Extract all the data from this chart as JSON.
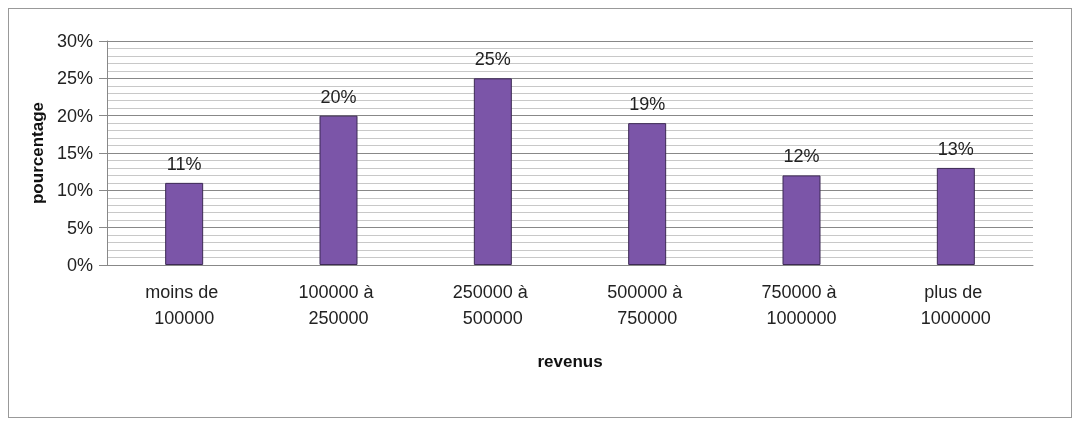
{
  "chart_data": {
    "type": "bar",
    "xlabel": "revenus",
    "ylabel": "pourcentage",
    "categories": [
      "moins de 100000",
      "100000 à 250000",
      "250000 à 500000",
      "500000 à 750000",
      "750000 à 1000000",
      "plus de 1000000"
    ],
    "values": [
      11,
      20,
      25,
      19,
      12,
      13
    ],
    "color": "#7b55a8",
    "value_labels": [
      "11%",
      "20%",
      "25%",
      "19%",
      "12%",
      "13%"
    ],
    "ylim": [
      0,
      30
    ],
    "yticks": [
      {
        "value": 0,
        "label": "0%"
      },
      {
        "value": 5,
        "label": "5%"
      },
      {
        "value": 10,
        "label": "10%"
      },
      {
        "value": 15,
        "label": "15%"
      },
      {
        "value": 20,
        "label": "20%"
      },
      {
        "value": 25,
        "label": "25%"
      },
      {
        "value": 30,
        "label": "30%"
      }
    ],
    "grid": "y"
  }
}
